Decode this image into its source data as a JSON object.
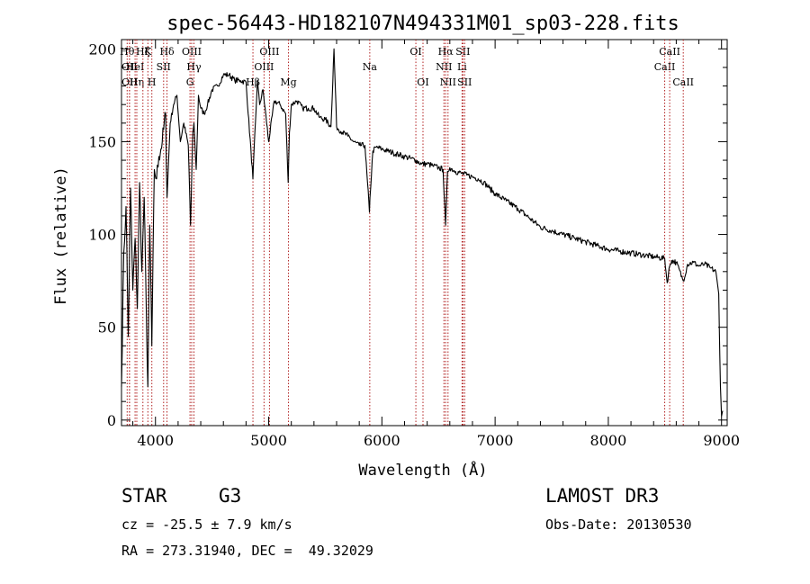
{
  "chart_data": {
    "type": "line",
    "title": "spec-56443-HD182107N494331M01_sp03-228.fits",
    "xlabel": "Wavelength (Å)",
    "ylabel": "Flux (relative)",
    "xlim": [
      3700,
      9050
    ],
    "ylim": [
      -3,
      205
    ],
    "xticks": [
      4000,
      5000,
      6000,
      7000,
      8000,
      9000
    ],
    "yticks": [
      0,
      50,
      100,
      150,
      200
    ],
    "grid": false,
    "series": [
      {
        "name": "flux",
        "color": "#000000",
        "x": [
          3700,
          3720,
          3740,
          3760,
          3780,
          3800,
          3820,
          3840,
          3860,
          3880,
          3900,
          3920,
          3933,
          3950,
          3968,
          3990,
          4010,
          4030,
          4060,
          4090,
          4102,
          4130,
          4160,
          4190,
          4220,
          4250,
          4290,
          4310,
          4330,
          4340,
          4360,
          4380,
          4400,
          4430,
          4460,
          4500,
          4550,
          4600,
          4650,
          4700,
          4750,
          4800,
          4861,
          4900,
          4920,
          4950,
          5000,
          5050,
          5100,
          5150,
          5172,
          5183,
          5200,
          5250,
          5300,
          5350,
          5400,
          5450,
          5500,
          5550,
          5577,
          5600,
          5650,
          5700,
          5750,
          5800,
          5850,
          5890,
          5895,
          5920,
          5950,
          6000,
          6050,
          6100,
          6150,
          6200,
          6250,
          6300,
          6350,
          6400,
          6450,
          6500,
          6540,
          6563,
          6580,
          6600,
          6650,
          6700,
          6750,
          6800,
          6850,
          6900,
          6950,
          7000,
          7100,
          7200,
          7300,
          7400,
          7500,
          7600,
          7700,
          7800,
          7900,
          8000,
          8100,
          8200,
          8300,
          8400,
          8498,
          8520,
          8542,
          8560,
          8600,
          8662,
          8700,
          8750,
          8800,
          8850,
          8900,
          8950,
          8975,
          8990,
          9000,
          9010
        ],
        "y": [
          18,
          90,
          115,
          45,
          125,
          70,
          98,
          60,
          128,
          80,
          120,
          55,
          18,
          105,
          40,
          135,
          130,
          142,
          150,
          165,
          120,
          160,
          170,
          175,
          150,
          160,
          148,
          105,
          155,
          160,
          135,
          175,
          168,
          165,
          170,
          178,
          180,
          186,
          186,
          183,
          183,
          182,
          130,
          183,
          170,
          178,
          150,
          172,
          170,
          165,
          128,
          155,
          170,
          172,
          168,
          168,
          168,
          163,
          162,
          158,
          200,
          158,
          155,
          153,
          150,
          148,
          148,
          112,
          120,
          145,
          147,
          146,
          145,
          144,
          143,
          142,
          141,
          140,
          138,
          138,
          137,
          136,
          135,
          105,
          134,
          136,
          134,
          133,
          132,
          131,
          130,
          128,
          125,
          122,
          118,
          114,
          109,
          104,
          102,
          100,
          98,
          96,
          94,
          92,
          91,
          90,
          89,
          88,
          87,
          74,
          83,
          86,
          85,
          75,
          84,
          85,
          83,
          84,
          82,
          80,
          68,
          18,
          2,
          5
        ]
      }
    ],
    "spectral_lines": [
      {
        "wl": 3750,
        "label": "Hθ",
        "row": 0
      },
      {
        "wl": 3770,
        "label": "OII",
        "row": 1
      },
      {
        "wl": 3771,
        "label": "OII",
        "row": 2
      },
      {
        "wl": 3820,
        "label": "HeI",
        "row": 1
      },
      {
        "wl": 3835,
        "label": "Hη",
        "row": 2
      },
      {
        "wl": 3889,
        "label": "Hζ",
        "row": 0
      },
      {
        "wl": 3933,
        "label": "K",
        "row": 0
      },
      {
        "wl": 3968,
        "label": "H",
        "row": 2
      },
      {
        "wl": 4072,
        "label": "SII",
        "row": 1
      },
      {
        "wl": 4102,
        "label": "Hδ",
        "row": 0
      },
      {
        "wl": 4320,
        "label": "OIII",
        "row": 0
      },
      {
        "wl": 4340,
        "label": "Hγ",
        "row": 1
      },
      {
        "wl": 4305,
        "label": "G",
        "row": 2
      },
      {
        "wl": 4861,
        "label": "Hβ",
        "row": 2
      },
      {
        "wl": 4959,
        "label": "OIII",
        "row": 1
      },
      {
        "wl": 5007,
        "label": "OIII",
        "row": 0
      },
      {
        "wl": 5175,
        "label": "Mg",
        "row": 2
      },
      {
        "wl": 5893,
        "label": "Na",
        "row": 1
      },
      {
        "wl": 6300,
        "label": "OI",
        "row": 0
      },
      {
        "wl": 6363,
        "label": "OI",
        "row": 2
      },
      {
        "wl": 6548,
        "label": "NII",
        "row": 1
      },
      {
        "wl": 6563,
        "label": "Hα",
        "row": 0
      },
      {
        "wl": 6584,
        "label": "NII",
        "row": 2
      },
      {
        "wl": 6708,
        "label": "Li",
        "row": 1
      },
      {
        "wl": 6716,
        "label": "SII",
        "row": 0
      },
      {
        "wl": 6731,
        "label": "SII",
        "row": 2
      },
      {
        "wl": 8498,
        "label": "CaII",
        "row": 1
      },
      {
        "wl": 8542,
        "label": "CaII",
        "row": 0
      },
      {
        "wl": 8662,
        "label": "CaII",
        "row": 2
      }
    ]
  },
  "info": {
    "object_class": "STAR",
    "subclass": "G3",
    "survey": "LAMOST DR3",
    "cz": "cz = -25.5 ± 7.9 km/s",
    "obs_date": "Obs-Date: 20130530",
    "coords": "RA = 273.31940, DEC =  49.32029"
  }
}
